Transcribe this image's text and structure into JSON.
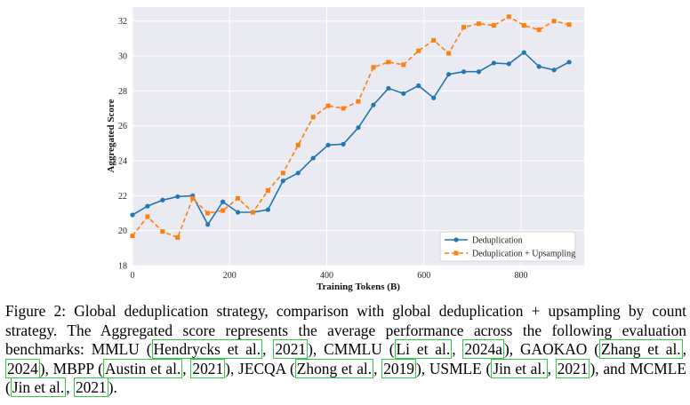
{
  "chart_data": {
    "type": "line",
    "xlabel": "Training Tokens (B)",
    "ylabel": "Aggregated Score",
    "xlim": [
      0,
      930
    ],
    "ylim": [
      18,
      32.8
    ],
    "xticks": [
      0,
      200,
      400,
      600,
      800
    ],
    "yticks": [
      18,
      20,
      22,
      24,
      26,
      28,
      30,
      32
    ],
    "grid": true,
    "legend_position": "lower-right",
    "x": [
      0,
      31,
      62,
      93,
      124,
      155,
      186,
      217,
      248,
      279,
      310,
      341,
      372,
      403,
      434,
      465,
      496,
      527,
      558,
      589,
      620,
      651,
      682,
      713,
      744,
      775,
      806,
      837,
      868,
      899
    ],
    "series": [
      {
        "name": "Deduplication",
        "color": "#1f77b4",
        "style": "solid",
        "marker": "circle",
        "values": [
          20.9,
          21.4,
          21.75,
          21.95,
          22.0,
          20.35,
          21.65,
          21.05,
          21.05,
          21.2,
          22.85,
          23.3,
          24.15,
          24.9,
          24.95,
          25.9,
          27.2,
          28.15,
          27.85,
          28.3,
          27.6,
          28.95,
          29.1,
          29.1,
          29.6,
          29.55,
          30.2,
          29.4,
          29.2,
          29.65
        ]
      },
      {
        "name": "Deduplication + Upsampling",
        "color": "#ff7f0e",
        "style": "dashed",
        "marker": "square",
        "values": [
          19.7,
          20.8,
          19.95,
          19.6,
          21.85,
          21.0,
          21.15,
          21.85,
          21.05,
          22.3,
          23.3,
          24.9,
          26.5,
          27.15,
          27.0,
          27.4,
          29.35,
          29.65,
          29.5,
          30.3,
          30.9,
          30.15,
          31.65,
          31.85,
          31.75,
          32.25,
          31.75,
          31.5,
          32.0,
          31.8
        ]
      }
    ]
  },
  "caption": {
    "t1": "Figure 2: Global deduplication strategy, comparison with global deduplication + upsampling by count strategy. The Aggregated score represents the average performance across the following evaluation benchmarks: MMLU (",
    "c1": "Hendrycks et al.",
    "t2": ", ",
    "c1y": "2021",
    "t3": "), CMMLU (",
    "c2": "Li et al.",
    "t4": ", ",
    "c2y": "2024a",
    "t5": "), GAOKAO (",
    "c3": "Zhang et al.",
    "t6": ", ",
    "c3y": "2024",
    "t7": "), MBPP (",
    "c4": "Austin et al.",
    "t8": ", ",
    "c4y": "2021",
    "t9": "), JECQA (",
    "c5": "Zhong et al.",
    "t10": ", ",
    "c5y": "2019",
    "t11": "), USMLE (",
    "c6": "Jin et al.",
    "t12": ", ",
    "c6y": "2021",
    "t13": "), and MCMLE (",
    "c7": "Jin et al.",
    "t14": ", ",
    "c7y": "2021",
    "t15": ")."
  }
}
